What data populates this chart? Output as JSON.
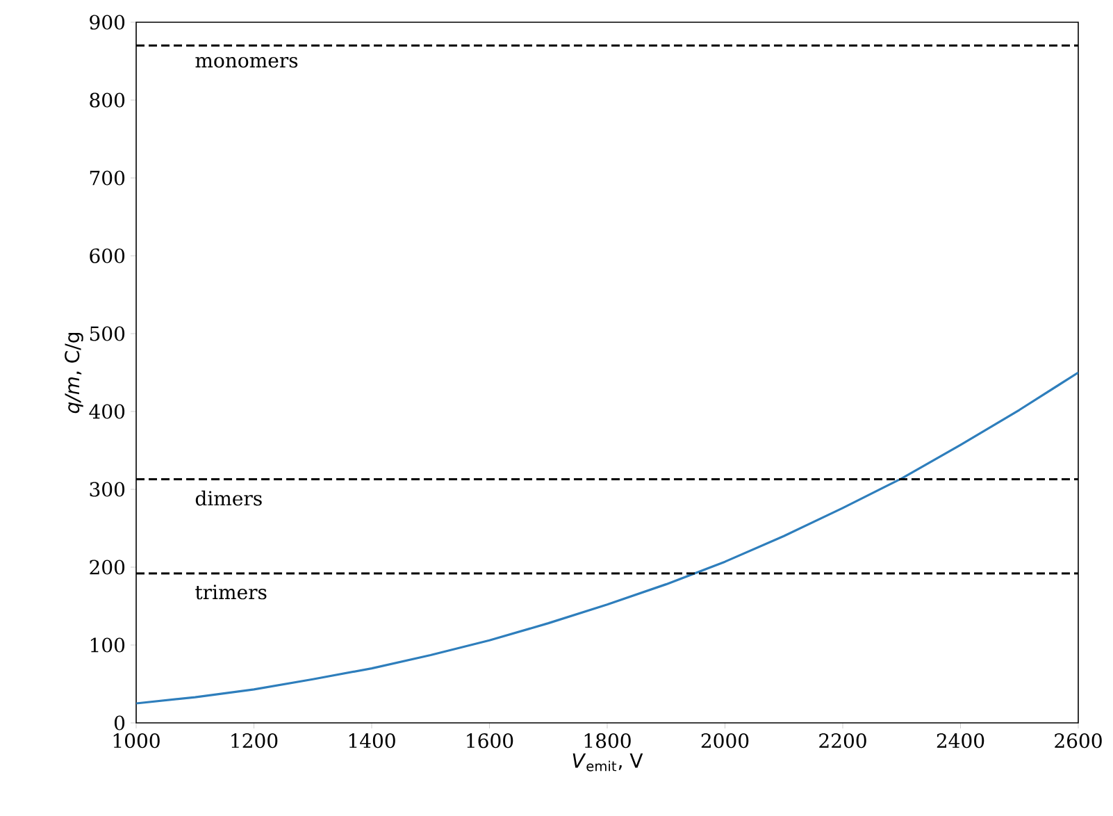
{
  "chart_data": {
    "type": "line",
    "xlabel": "*V*$_{emit}$, V",
    "ylabel": "*q/m*, C/g",
    "x": [
      1000,
      1100,
      1200,
      1300,
      1400,
      1500,
      1600,
      1700,
      1800,
      1900,
      2000,
      2100,
      2200,
      2300,
      2400,
      2500,
      2600
    ],
    "series": [
      {
        "color": "#2e7ebc",
        "values": [
          25,
          33,
          43,
          56,
          70,
          87,
          106,
          128,
          152,
          178,
          207,
          240,
          276,
          314,
          357,
          402,
          450
        ]
      }
    ],
    "xlim": [
      1000,
      2600
    ],
    "xticks": [
      1000,
      1200,
      1400,
      1600,
      1800,
      2000,
      2200,
      2400,
      2600
    ],
    "ylim": [
      0,
      900
    ],
    "yticks": [
      0,
      100,
      200,
      300,
      400,
      500,
      600,
      700,
      800,
      900
    ],
    "ref_lines": [
      {
        "axis": "y",
        "value": 870,
        "label": "monomers",
        "color": "#000000",
        "line_style": "dashed"
      },
      {
        "axis": "y",
        "value": 313,
        "label": "dimers",
        "color": "#000000",
        "line_style": "dashed"
      },
      {
        "axis": "y",
        "value": 192,
        "label": "trimers",
        "color": "#000000",
        "line_style": "dashed"
      }
    ],
    "grid": false,
    "marker": "none",
    "line_style": "solid"
  }
}
